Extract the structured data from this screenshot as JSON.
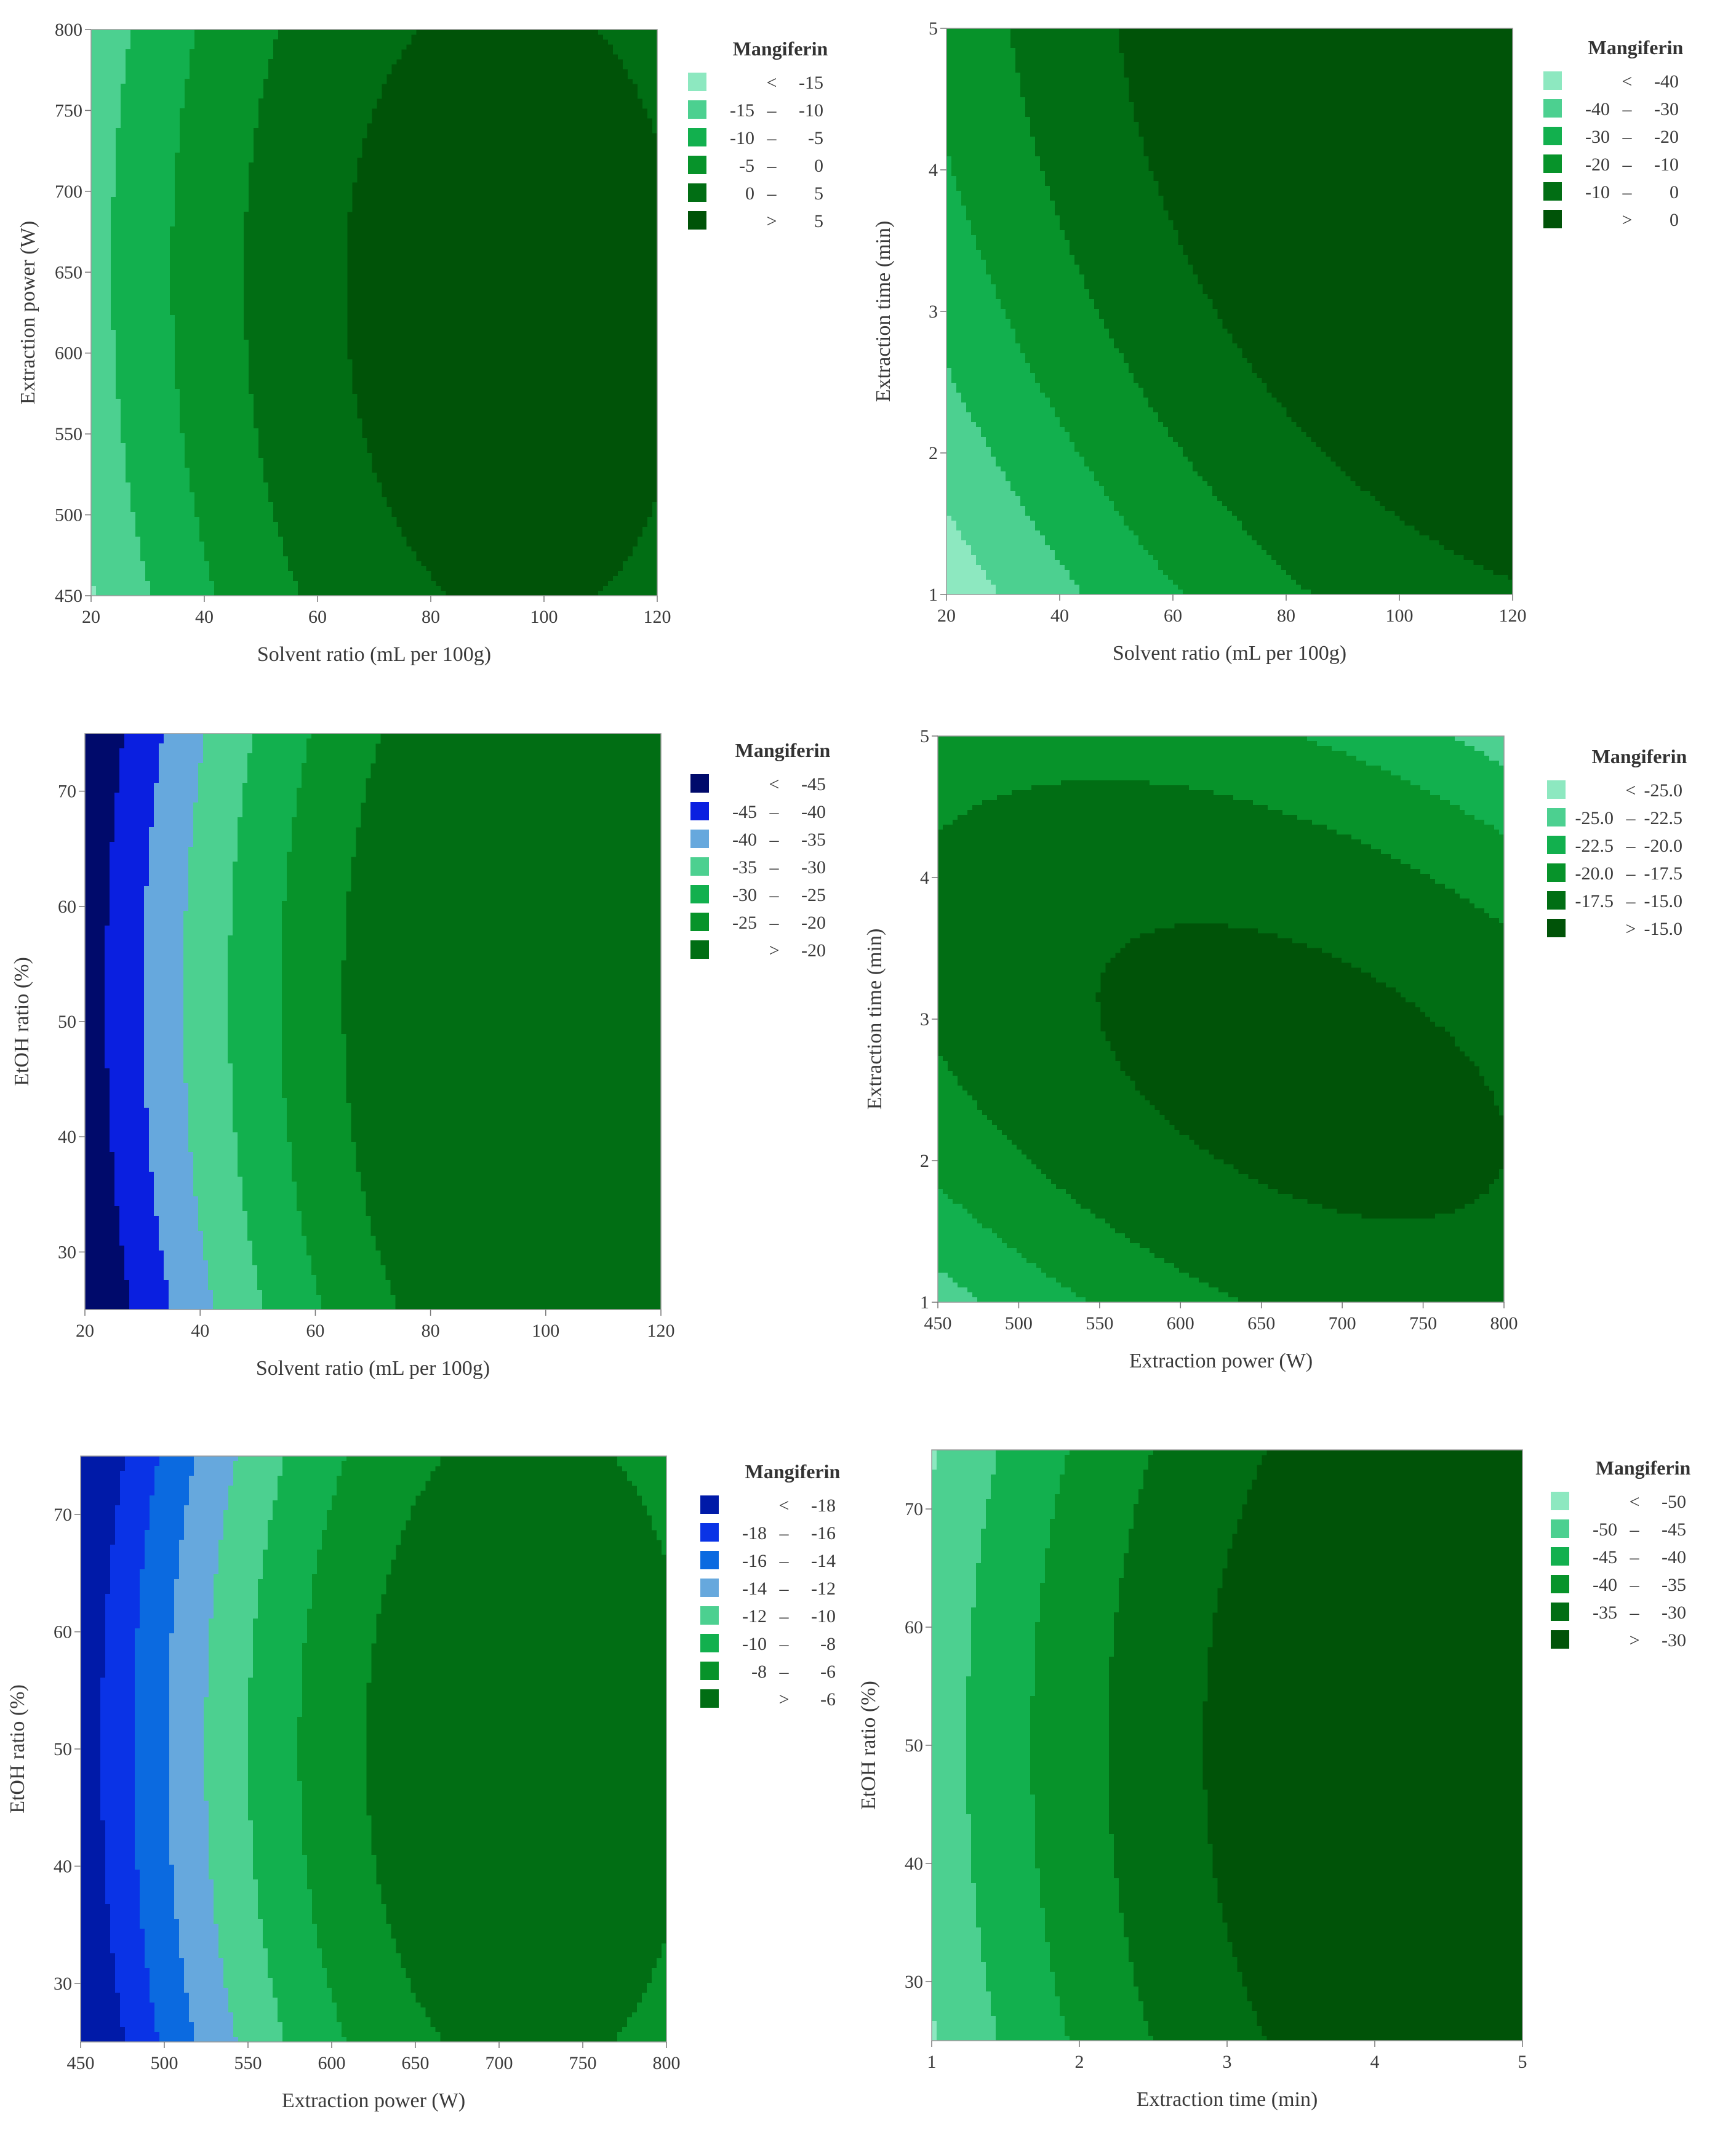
{
  "chart_data": [
    {
      "type": "contour",
      "id": "p1",
      "xlabel": "Solvent ratio (mL per 100g)",
      "ylabel": "Extraction power (W)",
      "xlim": [
        20,
        120
      ],
      "ylim": [
        450,
        800
      ],
      "xticks": [
        "20",
        "40",
        "60",
        "80",
        "100",
        "120"
      ],
      "yticks": [
        "450",
        "500",
        "550",
        "600",
        "650",
        "700",
        "750",
        "800"
      ],
      "legend_title": "Mangiferin",
      "legend": [
        {
          "op": "<",
          "lo": "",
          "hi": "-15",
          "color": "#8de8c0"
        },
        {
          "op": "–",
          "lo": "-15",
          "hi": "-10",
          "color": "#4cd090"
        },
        {
          "op": "–",
          "lo": "-10",
          "hi": "-5",
          "color": "#12b04e"
        },
        {
          "op": "–",
          "lo": "-5",
          "hi": "0",
          "color": "#07932a"
        },
        {
          "op": "–",
          "lo": "0",
          "hi": "5",
          "color": "#016e14"
        },
        {
          "op": ">",
          "lo": "",
          "hi": "5",
          "color": "#005308"
        }
      ],
      "surface": {
        "type": "quadratic",
        "b0": 6,
        "bx": 9,
        "by": 0.4,
        "bxx": 9,
        "byy": 2.5,
        "bxy": 0.5
      },
      "thresholds": [
        -15,
        -10,
        -5,
        0,
        5
      ]
    },
    {
      "type": "contour",
      "id": "p2",
      "xlabel": "Solvent ratio (mL per 100g)",
      "ylabel": "Extraction time (min)",
      "xlim": [
        20,
        120
      ],
      "ylim": [
        1,
        5
      ],
      "xticks": [
        "20",
        "40",
        "60",
        "80",
        "100",
        "120"
      ],
      "yticks": [
        "1",
        "2",
        "3",
        "4",
        "5"
      ],
      "legend_title": "Mangiferin",
      "legend": [
        {
          "op": "<",
          "lo": "",
          "hi": "-40",
          "color": "#8de8c0"
        },
        {
          "op": "–",
          "lo": "-40",
          "hi": "-30",
          "color": "#4cd090"
        },
        {
          "op": "–",
          "lo": "-30",
          "hi": "-20",
          "color": "#12b04e"
        },
        {
          "op": "–",
          "lo": "-20",
          "hi": "-10",
          "color": "#07932a"
        },
        {
          "op": "–",
          "lo": "-10",
          "hi": "0",
          "color": "#016e14"
        },
        {
          "op": ">",
          "lo": "",
          "hi": "0",
          "color": "#005308"
        }
      ],
      "surface": {
        "type": "quadratic",
        "b0": 1,
        "bx": 20,
        "by": 12,
        "bxx": 8,
        "byy": 5,
        "bxy": 3
      },
      "thresholds": [
        -40,
        -30,
        -20,
        -10,
        0
      ]
    },
    {
      "type": "contour",
      "id": "p3",
      "xlabel": "Solvent ratio (mL per 100g)",
      "ylabel": "EtOH ratio (%)",
      "xlim": [
        20,
        120
      ],
      "ylim": [
        25,
        75
      ],
      "xticks": [
        "20",
        "40",
        "60",
        "80",
        "100",
        "120"
      ],
      "yticks": [
        "30",
        "40",
        "50",
        "60",
        "70"
      ],
      "legend_title": "Mangiferin",
      "legend": [
        {
          "op": "<",
          "lo": "",
          "hi": "-45",
          "color": "#000a6b"
        },
        {
          "op": "–",
          "lo": "-45",
          "hi": "-40",
          "color": "#0a1fe0"
        },
        {
          "op": "–",
          "lo": "-40",
          "hi": "-35",
          "color": "#66a8dd"
        },
        {
          "op": "–",
          "lo": "-35",
          "hi": "-30",
          "color": "#4cd090"
        },
        {
          "op": "–",
          "lo": "-30",
          "hi": "-25",
          "color": "#12b04e"
        },
        {
          "op": "–",
          "lo": "-25",
          "hi": "-20",
          "color": "#07932a"
        },
        {
          "op": ">",
          "lo": "",
          "hi": "-20",
          "color": "#016e14"
        }
      ],
      "surface": {
        "type": "quadratic",
        "b0": -18,
        "bx": 18,
        "by": 0.5,
        "bxx": 12,
        "byy": 3,
        "bxy": 0
      },
      "thresholds": [
        -45,
        -40,
        -35,
        -30,
        -25,
        -20
      ]
    },
    {
      "type": "contour",
      "id": "p4",
      "xlabel": "Extraction power (W)",
      "ylabel": "Extraction time (min)",
      "xlim": [
        450,
        800
      ],
      "ylim": [
        1,
        5
      ],
      "xticks": [
        "450",
        "500",
        "550",
        "600",
        "650",
        "700",
        "750",
        "800"
      ],
      "yticks": [
        "1",
        "2",
        "3",
        "4",
        "5"
      ],
      "legend_title": "Mangiferin",
      "legend": [
        {
          "op": "<",
          "lo": "",
          "hi": "-25.0",
          "color": "#8de8c0"
        },
        {
          "op": "–",
          "lo": "-25.0",
          "hi": "-22.5",
          "color": "#4cd090"
        },
        {
          "op": "–",
          "lo": "-22.5",
          "hi": "-20.0",
          "color": "#12b04e"
        },
        {
          "op": "–",
          "lo": "-20.0",
          "hi": "-17.5",
          "color": "#07932a"
        },
        {
          "op": "–",
          "lo": "-17.5",
          "hi": "-15.0",
          "color": "#016e14"
        },
        {
          "op": ">",
          "lo": "",
          "hi": "-15.0",
          "color": "#005308"
        }
      ],
      "surface": {
        "type": "quadratic",
        "b0": -14.3,
        "bx": 0.7,
        "by": -0.7,
        "bxx": 2.2,
        "byy": 4.2,
        "bxy": 3.0
      },
      "thresholds": [
        -25,
        -22.5,
        -20,
        -17.5,
        -15
      ]
    },
    {
      "type": "contour",
      "id": "p5",
      "xlabel": "Extraction power (W)",
      "ylabel": "EtOH ratio (%)",
      "xlim": [
        450,
        800
      ],
      "ylim": [
        25,
        75
      ],
      "xticks": [
        "450",
        "500",
        "550",
        "600",
        "650",
        "700",
        "750",
        "800"
      ],
      "yticks": [
        "30",
        "40",
        "50",
        "60",
        "70"
      ],
      "legend_title": "Mangiferin",
      "legend": [
        {
          "op": "<",
          "lo": "",
          "hi": "-18",
          "color": "#001aa8"
        },
        {
          "op": "–",
          "lo": "-18",
          "hi": "-16",
          "color": "#0a33e6"
        },
        {
          "op": "–",
          "lo": "-16",
          "hi": "-14",
          "color": "#0b6ae0"
        },
        {
          "op": "–",
          "lo": "-14",
          "hi": "-12",
          "color": "#66a8dd"
        },
        {
          "op": "–",
          "lo": "-12",
          "hi": "-10",
          "color": "#4cd090"
        },
        {
          "op": "–",
          "lo": "-10",
          "hi": "-8",
          "color": "#12b04e"
        },
        {
          "op": "–",
          "lo": "-8",
          "hi": "-6",
          "color": "#07932a"
        },
        {
          "op": ">",
          "lo": "",
          "hi": "-6",
          "color": "#016e14"
        }
      ],
      "surface": {
        "type": "quadratic",
        "b0": -5.8,
        "bx": 7,
        "by": 0,
        "bxx": 6.6,
        "byy": 1.5,
        "bxy": 0
      },
      "thresholds": [
        -18,
        -16,
        -14,
        -12,
        -10,
        -8,
        -6
      ]
    },
    {
      "type": "contour",
      "id": "p6",
      "xlabel": "Extraction time (min)",
      "ylabel": "EtOH ratio (%)",
      "xlim": [
        1,
        5
      ],
      "ylim": [
        25,
        75
      ],
      "xticks": [
        "1",
        "2",
        "3",
        "4",
        "5"
      ],
      "yticks": [
        "30",
        "40",
        "50",
        "60",
        "70"
      ],
      "legend_title": "Mangiferin",
      "legend": [
        {
          "op": "<",
          "lo": "",
          "hi": "-50",
          "color": "#8de8c0"
        },
        {
          "op": "–",
          "lo": "-50",
          "hi": "-45",
          "color": "#4cd090"
        },
        {
          "op": "–",
          "lo": "-45",
          "hi": "-40",
          "color": "#12b04e"
        },
        {
          "op": "–",
          "lo": "-40",
          "hi": "-35",
          "color": "#07932a"
        },
        {
          "op": "–",
          "lo": "-35",
          "hi": "-30",
          "color": "#016e14"
        },
        {
          "op": ">",
          "lo": "",
          "hi": "-30",
          "color": "#005308"
        }
      ],
      "surface": {
        "type": "quadratic",
        "b0": -29,
        "bx": 12,
        "by": 0,
        "bxx": 7,
        "byy": 2.5,
        "bxy": 0
      },
      "thresholds": [
        -50,
        -45,
        -40,
        -35,
        -30
      ]
    }
  ]
}
